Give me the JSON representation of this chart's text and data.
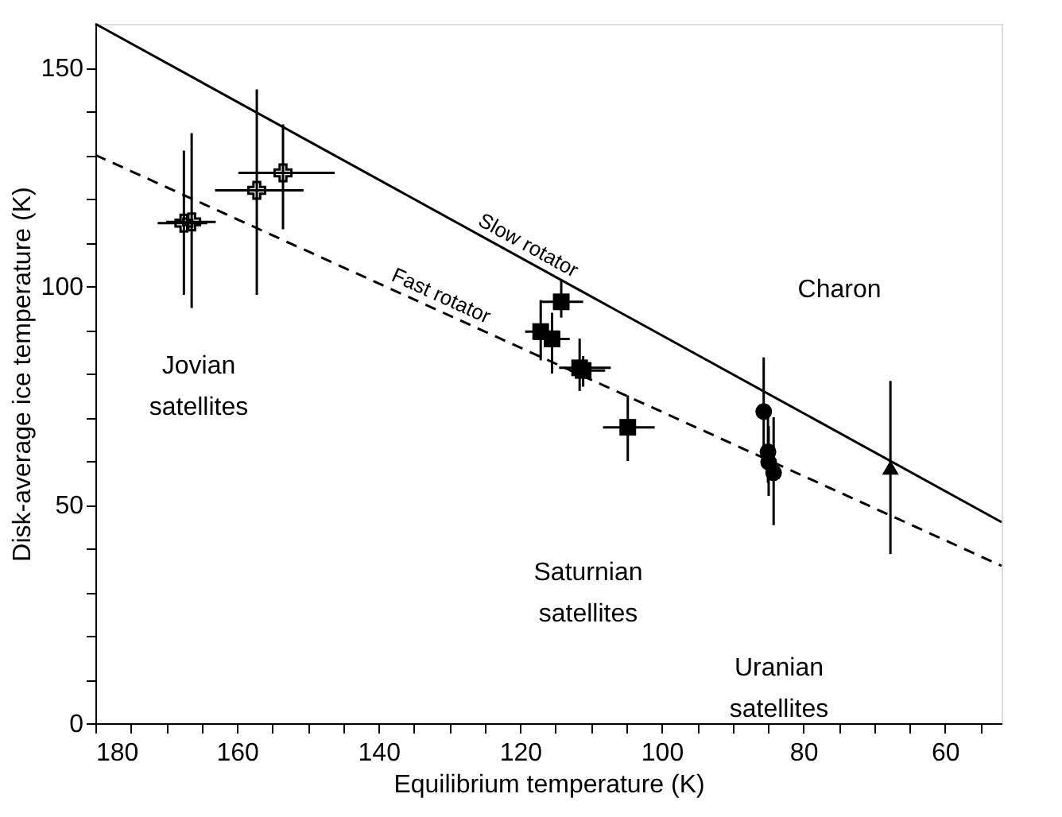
{
  "chart_data": {
    "type": "scatter",
    "xlabel": "Equilibrium temperature (K)",
    "ylabel": "Disk-average ice temperature (K)",
    "xlim": [
      180,
      52
    ],
    "ylim": [
      0,
      160
    ],
    "xticks": [
      180,
      {
        "value": 175,
        "label": null
      },
      {
        "value": 170,
        "label": null
      },
      {
        "value": 165,
        "label": null
      },
      160,
      {
        "value": 155,
        "label": null
      },
      {
        "value": 150,
        "label": null
      },
      {
        "value": 145,
        "label": null
      },
      140,
      {
        "value": 135,
        "label": null
      },
      {
        "value": 130,
        "label": null
      },
      {
        "value": 125,
        "label": null
      },
      120,
      {
        "value": 115,
        "label": null
      },
      {
        "value": 110,
        "label": null
      },
      {
        "value": 105,
        "label": null
      },
      100,
      {
        "value": 95,
        "label": null
      },
      {
        "value": 90,
        "label": null
      },
      {
        "value": 85,
        "label": null
      },
      80,
      {
        "value": 75,
        "label": null
      },
      {
        "value": 70,
        "label": null
      },
      {
        "value": 65,
        "label": null
      },
      60,
      {
        "value": 55,
        "label": null
      }
    ],
    "yticks": [
      0,
      {
        "value": 10,
        "label": null
      },
      {
        "value": 20,
        "label": null
      },
      {
        "value": 30,
        "label": null
      },
      {
        "value": 40,
        "label": null
      },
      50,
      {
        "value": 60,
        "label": null
      },
      {
        "value": 70,
        "label": null
      },
      {
        "value": 80,
        "label": null
      },
      {
        "value": 90,
        "label": null
      },
      100,
      {
        "value": 110,
        "label": null
      },
      {
        "value": 120,
        "label": null
      },
      {
        "value": 130,
        "label": null
      },
      {
        "value": 140,
        "label": null
      },
      150
    ],
    "grid": false,
    "series": [
      {
        "name": "Slow rotator",
        "type": "line",
        "line_style": "solid",
        "color": "#000000",
        "x": [
          180,
          52
        ],
        "values": [
          160,
          46
        ]
      },
      {
        "name": "Fast rotator",
        "type": "line",
        "line_style": "dashed",
        "color": "#000000",
        "x": [
          180,
          52
        ],
        "values": [
          130,
          36
        ]
      },
      {
        "marker": "cross",
        "color": "#000000",
        "x": [
          167.5,
          166.4,
          157.2,
          153.5
        ],
        "values": [
          114.4,
          114.7,
          121.9,
          125.9
        ],
        "errors": [
          [
            98,
            131
          ],
          [
            95,
            135
          ],
          [
            98,
            145
          ],
          [
            113,
            137
          ]
        ],
        "xerrors": [
          [
            164.2,
            171.2
          ],
          [
            163,
            170
          ],
          [
            150.6,
            163.1
          ],
          [
            146.2,
            159.8
          ]
        ]
      },
      {
        "marker": "square",
        "color": "#000000",
        "x": [
          114.2,
          117.1,
          115.5,
          111.6,
          111.1,
          104.8
        ],
        "values": [
          96.4,
          89.6,
          87.9,
          81.3,
          80.7,
          67.7
        ],
        "errors": [
          [
            92.8,
            101.4
          ],
          [
            83,
            96.8
          ],
          [
            80,
            93.9
          ],
          [
            76,
            88
          ],
          [
            77,
            84
          ],
          [
            60,
            75
          ]
        ],
        "xerrors": [
          [
            111.1,
            117
          ],
          [
            114.5,
            119.3
          ],
          [
            113,
            118
          ],
          [
            107.2,
            114.5
          ],
          [
            108,
            113
          ],
          [
            101,
            108.3
          ]
        ]
      },
      {
        "marker": "circle",
        "color": "#000000",
        "x": [
          85.6,
          85.0,
          84.9,
          84.2
        ],
        "values": [
          71.3,
          62.1,
          59.7,
          57.3
        ],
        "errors": [
          [
            60,
            83.7
          ],
          [
            55,
            70
          ],
          [
            52,
            68
          ],
          [
            45.3,
            70
          ]
        ]
      },
      {
        "marker": "triangle",
        "color": "#000000",
        "x": [
          67.7
        ],
        "values": [
          58.5
        ],
        "errors": [
          [
            38.7,
            78.3
          ]
        ]
      }
    ],
    "annotations": [
      "Jovian\nsatellites",
      "Saturnian\nsatellites",
      "Uranian\nsatellites",
      "Charon"
    ]
  }
}
